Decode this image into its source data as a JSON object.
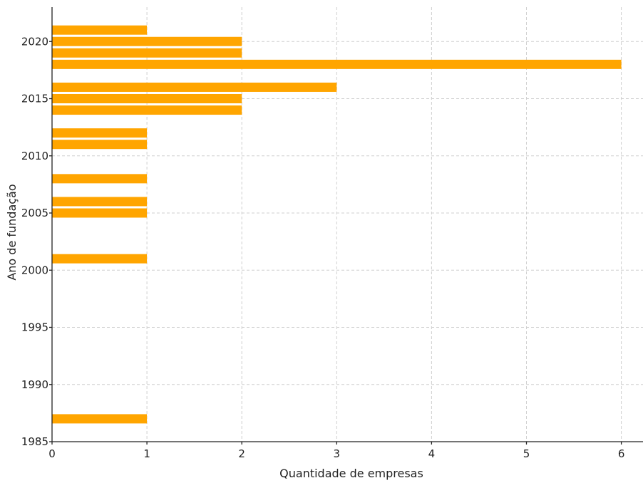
{
  "chart_data": {
    "type": "bar",
    "orientation": "horizontal",
    "title": "",
    "xlabel": "Quantidade de empresas",
    "ylabel": "Ano de fundação",
    "xlim": [
      0,
      6.2
    ],
    "ylim": [
      1985,
      2022.2
    ],
    "xticks": [
      "0",
      "1",
      "2",
      "3",
      "4",
      "5",
      "6"
    ],
    "yticks": [
      "1985",
      "1990",
      "1995",
      "2000",
      "2005",
      "2010",
      "2015",
      "2020"
    ],
    "grid": true,
    "bar_color": "#FFA500",
    "categories": [
      1987,
      2001,
      2005,
      2006,
      2008,
      2011,
      2012,
      2014,
      2015,
      2016,
      2018,
      2019,
      2020,
      2021
    ],
    "values": [
      1,
      1,
      1,
      1,
      1,
      1,
      1,
      2,
      2,
      3,
      6,
      2,
      2,
      1
    ]
  }
}
